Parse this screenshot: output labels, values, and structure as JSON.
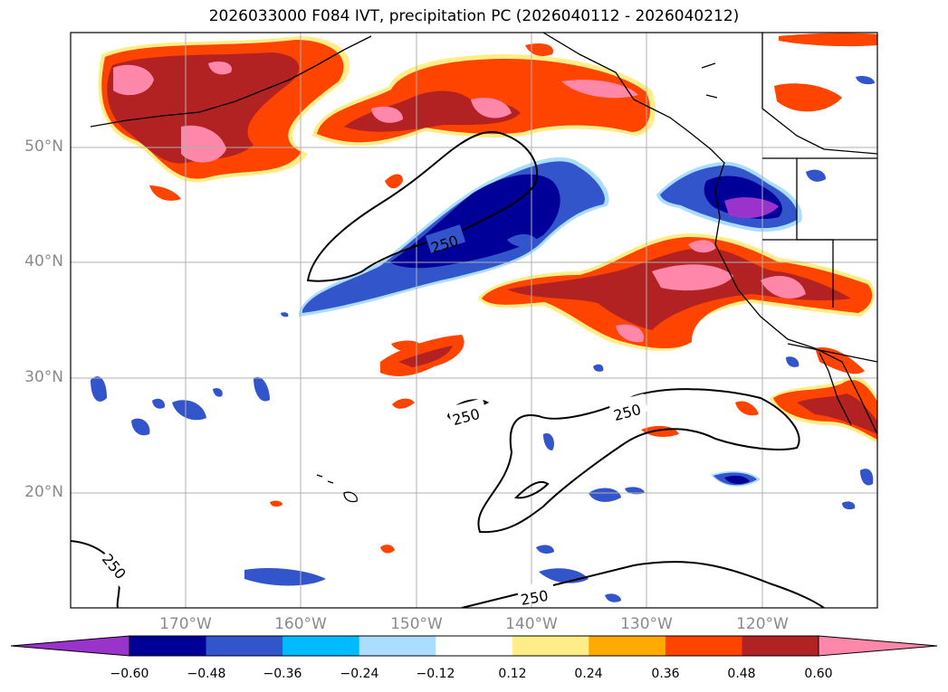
{
  "title": "2026033000 F084 IVT, precipitation PC (2026040112 - 2026040212)",
  "map": {
    "lon_range": [
      -180,
      -110
    ],
    "lat_range": [
      10,
      60
    ],
    "lat_labels": [
      "50°N",
      "40°N",
      "30°N",
      "20°N"
    ],
    "lon_labels": [
      "170°W",
      "160°W",
      "150°W",
      "140°W",
      "130°W",
      "120°W"
    ],
    "contour_label": "250",
    "contour_labels": [
      "250",
      "250",
      "250",
      "250",
      "250"
    ],
    "colors": {
      "neg_060": "#9933cc",
      "neg_048": "#000099",
      "neg_036": "#3355cc",
      "neg_024": "#00bbff",
      "neg_012": "#aaddff",
      "neutral": "#ffffff",
      "pos_012": "#ffee88",
      "pos_024": "#ffaa00",
      "pos_036": "#ff4400",
      "pos_048": "#b22222",
      "pos_060": "#ff88aa"
    }
  },
  "colorbar": {
    "ticks": [
      "−0.60",
      "−0.48",
      "−0.36",
      "−0.24",
      "−0.12",
      "0.12",
      "0.24",
      "0.36",
      "0.48",
      "0.60"
    ],
    "colors": [
      "#9933cc",
      "#000099",
      "#3355cc",
      "#00bbff",
      "#aaddff",
      "#ffffff",
      "#ffee88",
      "#ffaa00",
      "#ff4400",
      "#b22222",
      "#ff88aa"
    ]
  }
}
